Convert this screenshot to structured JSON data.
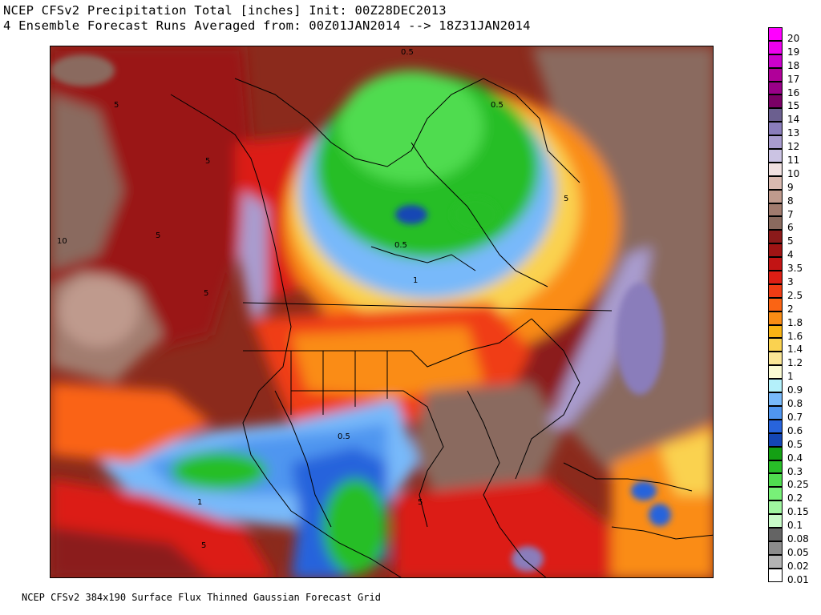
{
  "header": {
    "line1": "NCEP CFSv2 Precipitation Total [inches] Init: 00Z28DEC2013",
    "line2": "4 Ensemble Forecast Runs Averaged from: 00Z01JAN2014 --> 18Z31JAN2014"
  },
  "footer": "NCEP CFSv2 384x190 Surface Flux Thinned Gaussian Forecast Grid",
  "map": {
    "contour_labels": [
      "5",
      "0.5",
      "0.5",
      "5",
      "10",
      "5",
      "5",
      "0.5",
      "1",
      "5",
      "0.5",
      "1",
      "5",
      "5"
    ]
  },
  "legend": {
    "items": [
      {
        "label": "20",
        "color": "#ff00ff"
      },
      {
        "label": "19",
        "color": "#ee00ee"
      },
      {
        "label": "18",
        "color": "#cc00cc"
      },
      {
        "label": "17",
        "color": "#b00099"
      },
      {
        "label": "16",
        "color": "#990088"
      },
      {
        "label": "15",
        "color": "#7a0066"
      },
      {
        "label": "14",
        "color": "#6b5f8f"
      },
      {
        "label": "13",
        "color": "#8a7dbb"
      },
      {
        "label": "12",
        "color": "#a99ccf"
      },
      {
        "label": "11",
        "color": "#cbc3e3"
      },
      {
        "label": "10",
        "color": "#f0e0e0"
      },
      {
        "label": "9",
        "color": "#d9b9b0"
      },
      {
        "label": "8",
        "color": "#bf9a8d"
      },
      {
        "label": "7",
        "color": "#a17b6e"
      },
      {
        "label": "6",
        "color": "#8a6a5e"
      },
      {
        "label": "5",
        "color": "#8b1a1a"
      },
      {
        "label": "4",
        "color": "#a01414"
      },
      {
        "label": "3.5",
        "color": "#c21414"
      },
      {
        "label": "3",
        "color": "#dc1e14"
      },
      {
        "label": "2.5",
        "color": "#f03c14"
      },
      {
        "label": "2",
        "color": "#fa6414"
      },
      {
        "label": "1.8",
        "color": "#fa8c14"
      },
      {
        "label": "1.6",
        "color": "#fab414"
      },
      {
        "label": "1.4",
        "color": "#fad250"
      },
      {
        "label": "1.2",
        "color": "#fae696"
      },
      {
        "label": "1",
        "color": "#fafad2"
      },
      {
        "label": "0.9",
        "color": "#b4f0fa"
      },
      {
        "label": "0.8",
        "color": "#78b9fa"
      },
      {
        "label": "0.7",
        "color": "#5096f0"
      },
      {
        "label": "0.6",
        "color": "#2864dc"
      },
      {
        "label": "0.5",
        "color": "#1446b4"
      },
      {
        "label": "0.4",
        "color": "#14a014"
      },
      {
        "label": "0.3",
        "color": "#28be28"
      },
      {
        "label": "0.25",
        "color": "#50dc50"
      },
      {
        "label": "0.2",
        "color": "#78f078"
      },
      {
        "label": "0.15",
        "color": "#a0f5a0"
      },
      {
        "label": "0.1",
        "color": "#c8fac8"
      },
      {
        "label": "0.08",
        "color": "#646464"
      },
      {
        "label": "0.05",
        "color": "#8c8c8c"
      },
      {
        "label": "0.02",
        "color": "#b4b4b4"
      },
      {
        "label": "0.01",
        "color": "#ffffff"
      }
    ]
  }
}
